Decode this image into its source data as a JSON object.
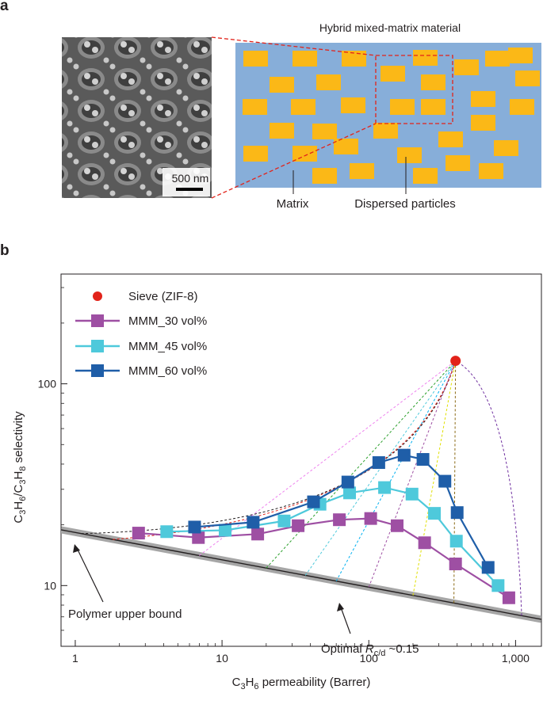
{
  "panel_a": {
    "letter": "a",
    "schematic_title": "Hybrid mixed-matrix material",
    "scale_bar_label": "500 nm",
    "matrix_label": "Matrix",
    "particles_label": "Dispersed particles",
    "colors": {
      "matrix": "#87aed9",
      "particle": "#fbb817",
      "zoom_lines": "#e2231a",
      "sem_background": "#6e6e6e"
    }
  },
  "panel_b": {
    "letter": "b",
    "annotations": {
      "upper_bound_prefix": "Polymer upper bound",
      "optimal_prefix": "Optimal ",
      "optimal_var": "R",
      "optimal_sub": "c/d",
      "optimal_suffix": " ~0.15"
    }
  },
  "chart_data": {
    "type": "scatter",
    "xscale": "log",
    "yscale": "log",
    "xlim": [
      0.8,
      1500
    ],
    "ylim": [
      5,
      350
    ],
    "xlabel": "C3H6 permeability (Barrer)",
    "ylabel": "C3H6/C3H8 selectivity",
    "xticks": [
      1,
      10,
      100,
      1000
    ],
    "xtick_labels": [
      "1",
      "10",
      "100",
      "1,000"
    ],
    "yticks": [
      10,
      100
    ],
    "ytick_labels": [
      "10",
      "100"
    ],
    "legend_position": "top-left",
    "series": [
      {
        "name": "Sieve (ZIF-8)",
        "color": "#e2231a",
        "marker": "circle",
        "x": [
          390
        ],
        "y": [
          130
        ]
      },
      {
        "name": "MMM_30 vol%",
        "color": "#9e4fa3",
        "marker": "square",
        "x": [
          2.7,
          6.9,
          17.5,
          33,
          63,
          103,
          156,
          240,
          390,
          900
        ],
        "y": [
          18.2,
          17.3,
          18.0,
          19.8,
          21.2,
          21.5,
          19.8,
          16.3,
          12.8,
          8.7
        ]
      },
      {
        "name": "MMM_45 vol%",
        "color": "#4ec9db",
        "marker": "square",
        "x": [
          4.2,
          10.5,
          26.5,
          46.5,
          74,
          128,
          197,
          280,
          395,
          760
        ],
        "y": [
          18.5,
          18.8,
          20.9,
          25.3,
          28.8,
          30.6,
          28.4,
          22.8,
          16.6,
          10.0
        ]
      },
      {
        "name": "MMM_60 vol%",
        "color": "#1f5ea8",
        "marker": "square",
        "x": [
          6.5,
          16.3,
          42,
          72,
          117,
          174,
          234,
          330,
          400,
          650
        ],
        "y": [
          19.5,
          20.6,
          26.0,
          32.6,
          40.7,
          44.3,
          42.2,
          32.9,
          23.0,
          12.3
        ]
      }
    ],
    "upper_bound": {
      "x": [
        0.8,
        1500
      ],
      "y": [
        18.9,
        6.8
      ],
      "color": "#a6a6a6"
    },
    "guide_colors": [
      "#231f20",
      "#e2231a",
      "#ee82ee",
      "#2ca02c",
      "#4ec9db",
      "#00b0f0",
      "#9e4fa3",
      "#e0e000",
      "#8b6914",
      "#7030a0"
    ]
  }
}
